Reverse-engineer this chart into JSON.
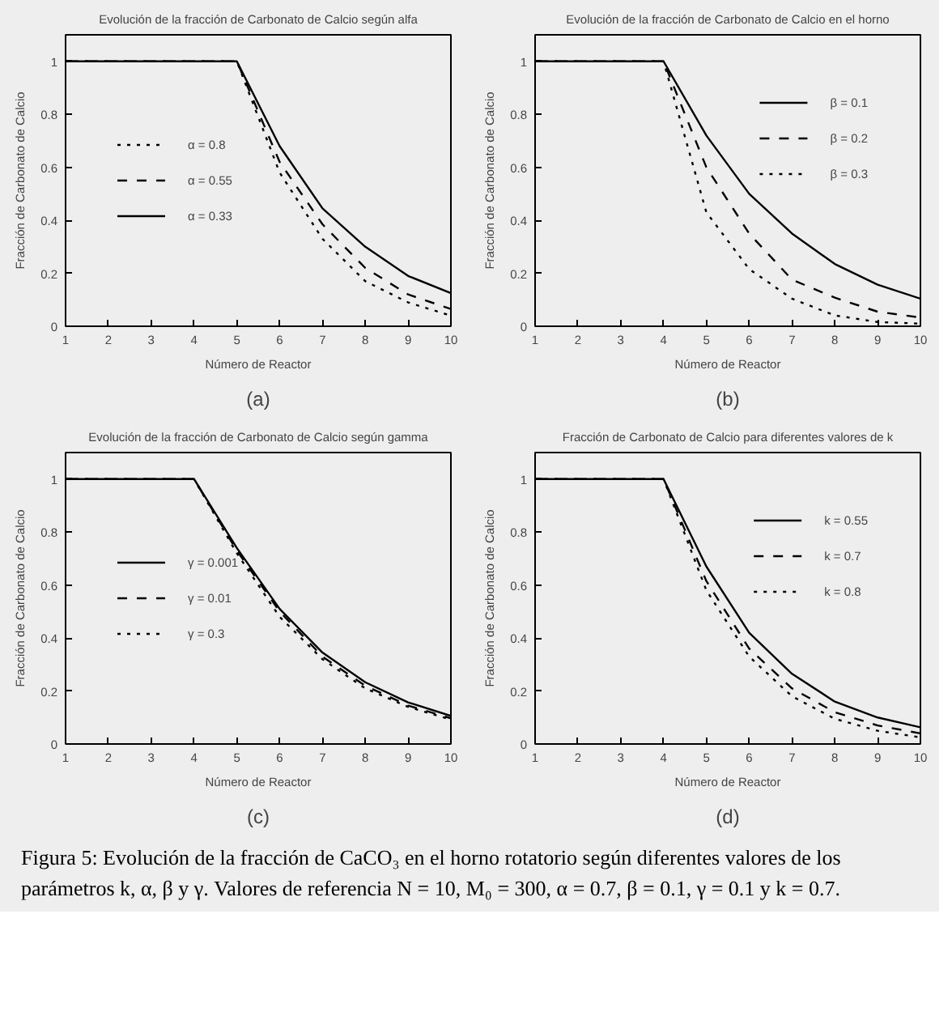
{
  "chart_data": [
    {
      "type": "line",
      "title": "Evolución de la fracción de Carbonato de Calcio según alfa",
      "xlabel": "Número de Reactor",
      "ylabel": "Fracción de Carbonato de Calcio",
      "annotations": [
        "(a)"
      ],
      "x": [
        1,
        2,
        3,
        4,
        5,
        6,
        7,
        8,
        9,
        10
      ],
      "xlim": [
        1,
        10
      ],
      "xticks": [
        1,
        2,
        3,
        4,
        5,
        6,
        7,
        8,
        9,
        10
      ],
      "ylim": [
        0,
        1.1
      ],
      "yticks": [
        0,
        0.2,
        0.4,
        0.6,
        0.8,
        1
      ],
      "grid": false,
      "legend": "left",
      "marker": "none",
      "series": [
        {
          "name": "α = 0.8",
          "color": "#000000",
          "line_style": "dotted",
          "values": [
            1,
            1,
            1,
            1,
            1,
            0.58,
            0.33,
            0.17,
            0.09,
            0.04
          ]
        },
        {
          "name": "α = 0.55",
          "color": "#000000",
          "line_style": "dashed",
          "values": [
            1,
            1,
            1,
            1,
            1,
            0.62,
            0.385,
            0.22,
            0.12,
            0.065
          ]
        },
        {
          "name": "α = 0.33",
          "color": "#000000",
          "line_style": "solid",
          "values": [
            1,
            1,
            1,
            1,
            1,
            0.68,
            0.445,
            0.3,
            0.19,
            0.125
          ]
        }
      ]
    },
    {
      "type": "line",
      "title": "Evolución de la fracción de Carbonato de Calcio en el horno",
      "xlabel": "Número de Reactor",
      "ylabel": "Fracción de Carbonato de Calcio",
      "annotations": [
        "(b)"
      ],
      "x": [
        1,
        2,
        3,
        4,
        5,
        6,
        7,
        8,
        9,
        10
      ],
      "xlim": [
        1,
        10
      ],
      "xticks": [
        1,
        2,
        3,
        4,
        5,
        6,
        7,
        8,
        9,
        10
      ],
      "ylim": [
        0,
        1.1
      ],
      "yticks": [
        0,
        0.2,
        0.4,
        0.6,
        0.8,
        1
      ],
      "grid": false,
      "legend": "top right",
      "marker": "none",
      "series": [
        {
          "name": "β = 0.1",
          "color": "#000000",
          "line_style": "solid",
          "values": [
            1,
            1,
            1,
            1,
            0.72,
            0.5,
            0.35,
            0.235,
            0.157,
            0.104
          ]
        },
        {
          "name": "β = 0.2",
          "color": "#000000",
          "line_style": "dashed",
          "values": [
            1,
            1,
            1,
            1,
            0.6,
            0.35,
            0.176,
            0.108,
            0.055,
            0.033
          ]
        },
        {
          "name": "β = 0.3",
          "color": "#000000",
          "line_style": "dotted",
          "values": [
            1,
            1,
            1,
            1,
            0.43,
            0.216,
            0.104,
            0.041,
            0.016,
            0.01
          ]
        }
      ]
    },
    {
      "type": "line",
      "title": "Evolución de la fracción de Carbonato de Calcio según gamma",
      "xlabel": "Número de Reactor",
      "ylabel": "Fracción de Carbonato de Calcio",
      "annotations": [
        "(c)"
      ],
      "x": [
        1,
        2,
        3,
        4,
        5,
        6,
        7,
        8,
        9,
        10
      ],
      "xlim": [
        1,
        10
      ],
      "xticks": [
        1,
        2,
        3,
        4,
        5,
        6,
        7,
        8,
        9,
        10
      ],
      "ylim": [
        0,
        1.1
      ],
      "yticks": [
        0,
        0.2,
        0.4,
        0.6,
        0.8,
        1
      ],
      "grid": false,
      "legend": "left",
      "marker": "none",
      "series": [
        {
          "name": "γ = 0.001",
          "color": "#000000",
          "line_style": "solid",
          "values": [
            1,
            1,
            1,
            1,
            0.74,
            0.51,
            0.345,
            0.233,
            0.157,
            0.106
          ]
        },
        {
          "name": "γ = 0.01",
          "color": "#000000",
          "line_style": "dashed",
          "values": [
            1,
            1,
            1,
            1,
            0.73,
            0.5,
            0.33,
            0.22,
            0.145,
            0.097
          ]
        },
        {
          "name": "γ = 0.3",
          "color": "#000000",
          "line_style": "dotted",
          "values": [
            1,
            1,
            1,
            1,
            0.72,
            0.48,
            0.32,
            0.21,
            0.14,
            0.092
          ]
        }
      ]
    },
    {
      "type": "line",
      "title": "Fracción de Carbonato de Calcio para diferentes valores de k",
      "xlabel": "Número de Reactor",
      "ylabel": "Fracción de Carbonato de Calcio",
      "annotations": [
        "(d)"
      ],
      "x": [
        1,
        2,
        3,
        4,
        5,
        6,
        7,
        8,
        9,
        10
      ],
      "xlim": [
        1,
        10
      ],
      "xticks": [
        1,
        2,
        3,
        4,
        5,
        6,
        7,
        8,
        9,
        10
      ],
      "ylim": [
        0,
        1.1
      ],
      "yticks": [
        0,
        0.2,
        0.4,
        0.6,
        0.8,
        1
      ],
      "grid": false,
      "legend": "top right",
      "marker": "none",
      "series": [
        {
          "name": "k = 0.55",
          "color": "#000000",
          "line_style": "solid",
          "values": [
            1,
            1,
            1,
            1,
            0.67,
            0.42,
            0.265,
            0.16,
            0.1,
            0.063
          ]
        },
        {
          "name": "k = 0.7",
          "color": "#000000",
          "line_style": "dashed",
          "values": [
            1,
            1,
            1,
            1,
            0.615,
            0.36,
            0.21,
            0.12,
            0.07,
            0.04
          ]
        },
        {
          "name": "k = 0.8",
          "color": "#000000",
          "line_style": "dotted",
          "values": [
            1,
            1,
            1,
            1,
            0.58,
            0.33,
            0.18,
            0.095,
            0.05,
            0.025
          ]
        }
      ]
    },
    {
      "type": "other",
      "annotations": [
        "Figura 5: Evolución de la fracción de CaCO₃ en el horno rotatorio según diferentes valores de los parámetros k, α, β y γ. Valores de referencia N = 10, M₀ = 300, α = 0.7, β = 0.1, γ = 0.1 y k = 0.7."
      ]
    }
  ]
}
